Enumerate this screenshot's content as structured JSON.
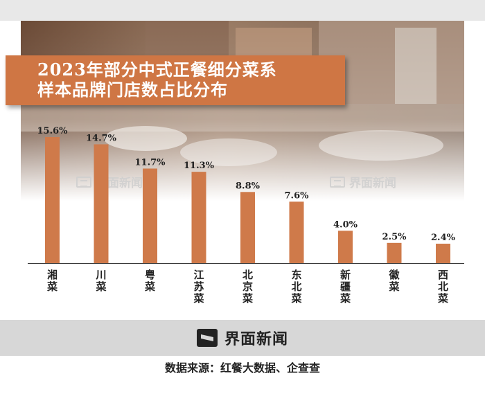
{
  "title": {
    "line1": "2023年部分中式正餐细分菜系",
    "line2": "样本品牌门店数占比分布"
  },
  "watermark": "界面新闻",
  "footer": {
    "brand": "界面新闻",
    "source": "数据来源：红餐大数据、企查查"
  },
  "colors": {
    "bar": "#cf7a4a",
    "title_bg": "#cf7644",
    "footer_bg": "#d7d7d7"
  },
  "chart_data": {
    "type": "bar",
    "title": "2023年部分中式正餐细分菜系样本品牌门店数占比分布",
    "categories": [
      "湘菜",
      "川菜",
      "粤菜",
      "江苏菜",
      "北京菜",
      "东北菜",
      "新疆菜",
      "徽菜",
      "西北菜"
    ],
    "values": [
      15.6,
      14.7,
      11.7,
      11.3,
      8.8,
      7.6,
      4.0,
      2.5,
      2.4
    ],
    "value_labels": [
      "15.6%",
      "14.7%",
      "11.7%",
      "11.3%",
      "8.8%",
      "7.6%",
      "4.0%",
      "2.5%",
      "2.4%"
    ],
    "unit": "%",
    "ylim": [
      0,
      16
    ],
    "grid": false,
    "legend": "none"
  }
}
